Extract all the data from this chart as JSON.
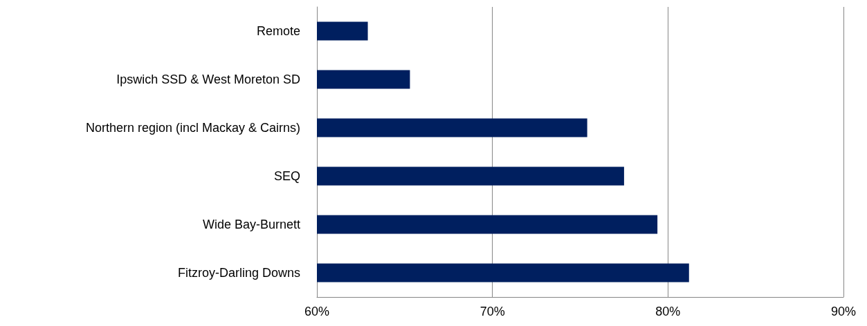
{
  "chart_data": {
    "type": "bar",
    "orientation": "horizontal",
    "categories": [
      "Remote",
      "Ipswich SSD & West Moreton SD",
      "Northern region (incl Mackay & Cairns)",
      "SEQ",
      "Wide Bay-Burnett",
      "Fitzroy-Darling Downs"
    ],
    "values": [
      62.9,
      65.3,
      75.4,
      77.5,
      79.4,
      81.2
    ],
    "color": "#001f5f",
    "xlim": [
      60,
      90
    ],
    "xticks": [
      {
        "value": 60,
        "label": "60%"
      },
      {
        "value": 70,
        "label": "70%"
      },
      {
        "value": 80,
        "label": "80%"
      },
      {
        "value": 90,
        "label": "90%"
      }
    ],
    "grid": "x"
  }
}
